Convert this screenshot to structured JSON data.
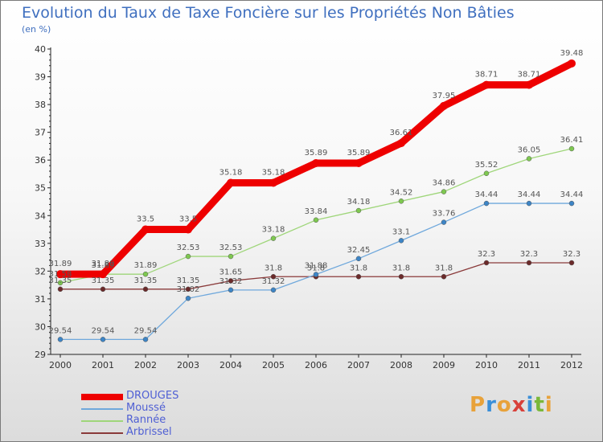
{
  "title": "Evolution du Taux de Taxe Foncière sur les Propriétés Non Bâties",
  "unit": "(en %)",
  "logo": {
    "letters": [
      "P",
      "r",
      "o",
      "x",
      "i",
      "t",
      "i"
    ],
    "colors": [
      "#e8a23a",
      "#3a8fd8",
      "#e8a23a",
      "#d8403a",
      "#3a8fd8",
      "#7ab83a",
      "#e8a23a"
    ]
  },
  "chart_data": {
    "type": "line",
    "title": "Evolution du Taux de Taxe Foncière sur les Propriétés Non Bâties",
    "ylabel": "(en %)",
    "xlabel": "",
    "x": [
      "2000",
      "2001",
      "2002",
      "2003",
      "2004",
      "2005",
      "2006",
      "2007",
      "2008",
      "2009",
      "2010",
      "2011",
      "2012"
    ],
    "ylim": [
      29,
      40
    ],
    "yticks": [
      "29",
      "30",
      "31",
      "32",
      "33",
      "34",
      "35",
      "36",
      "37",
      "38",
      "39",
      "40"
    ],
    "grid": false,
    "legend_position": "bottom-left",
    "series": [
      {
        "name": "DROUGES",
        "color": "#ee0000",
        "marker": "#ee0000",
        "values": [
          31.89,
          31.89,
          33.5,
          33.5,
          35.18,
          35.18,
          35.89,
          35.89,
          36.61,
          37.95,
          38.71,
          38.71,
          39.48
        ],
        "labels": [
          "31.89",
          "31.89",
          "33.5",
          "33.5",
          "35.18",
          "35.18",
          "35.89",
          "35.89",
          "36.61",
          "37.95",
          "38.71",
          "38.71",
          "39.48"
        ]
      },
      {
        "name": "Moussé",
        "color": "#6fa8dc",
        "marker": "#3d85c6",
        "values": [
          29.54,
          29.54,
          29.54,
          31.02,
          31.32,
          31.32,
          31.88,
          32.45,
          33.1,
          33.76,
          34.44,
          34.44,
          34.44
        ],
        "labels": [
          "29.54",
          "29.54",
          "29.54",
          "31.02",
          "31.32",
          "31.32",
          "31.88",
          "32.45",
          "33.1",
          "33.76",
          "34.44",
          "34.44",
          "34.44"
        ]
      },
      {
        "name": "Rannée",
        "color": "#9fd67a",
        "marker": "#7ec850",
        "values": [
          31.58,
          31.89,
          31.89,
          32.53,
          32.53,
          33.18,
          33.84,
          34.18,
          34.52,
          34.86,
          35.52,
          36.05,
          36.41
        ],
        "labels": [
          "31.58",
          "31.89",
          "31.89",
          "32.53",
          "32.53",
          "33.18",
          "33.84",
          "34.18",
          "34.52",
          "34.86",
          "35.52",
          "36.05",
          "36.41"
        ]
      },
      {
        "name": "Arbrissel",
        "color": "#8a3a3a",
        "marker": "#6b2a2a",
        "values": [
          31.35,
          31.35,
          31.35,
          31.35,
          31.65,
          31.8,
          31.8,
          31.8,
          31.8,
          31.8,
          32.3,
          32.3,
          32.3
        ],
        "labels": [
          "31.35",
          "31.35",
          "31.35",
          "31.35",
          "31.65",
          "31.8",
          "31.8",
          "31.8",
          "31.8",
          "31.8",
          "32.3",
          "32.3",
          "32.3"
        ]
      }
    ]
  }
}
